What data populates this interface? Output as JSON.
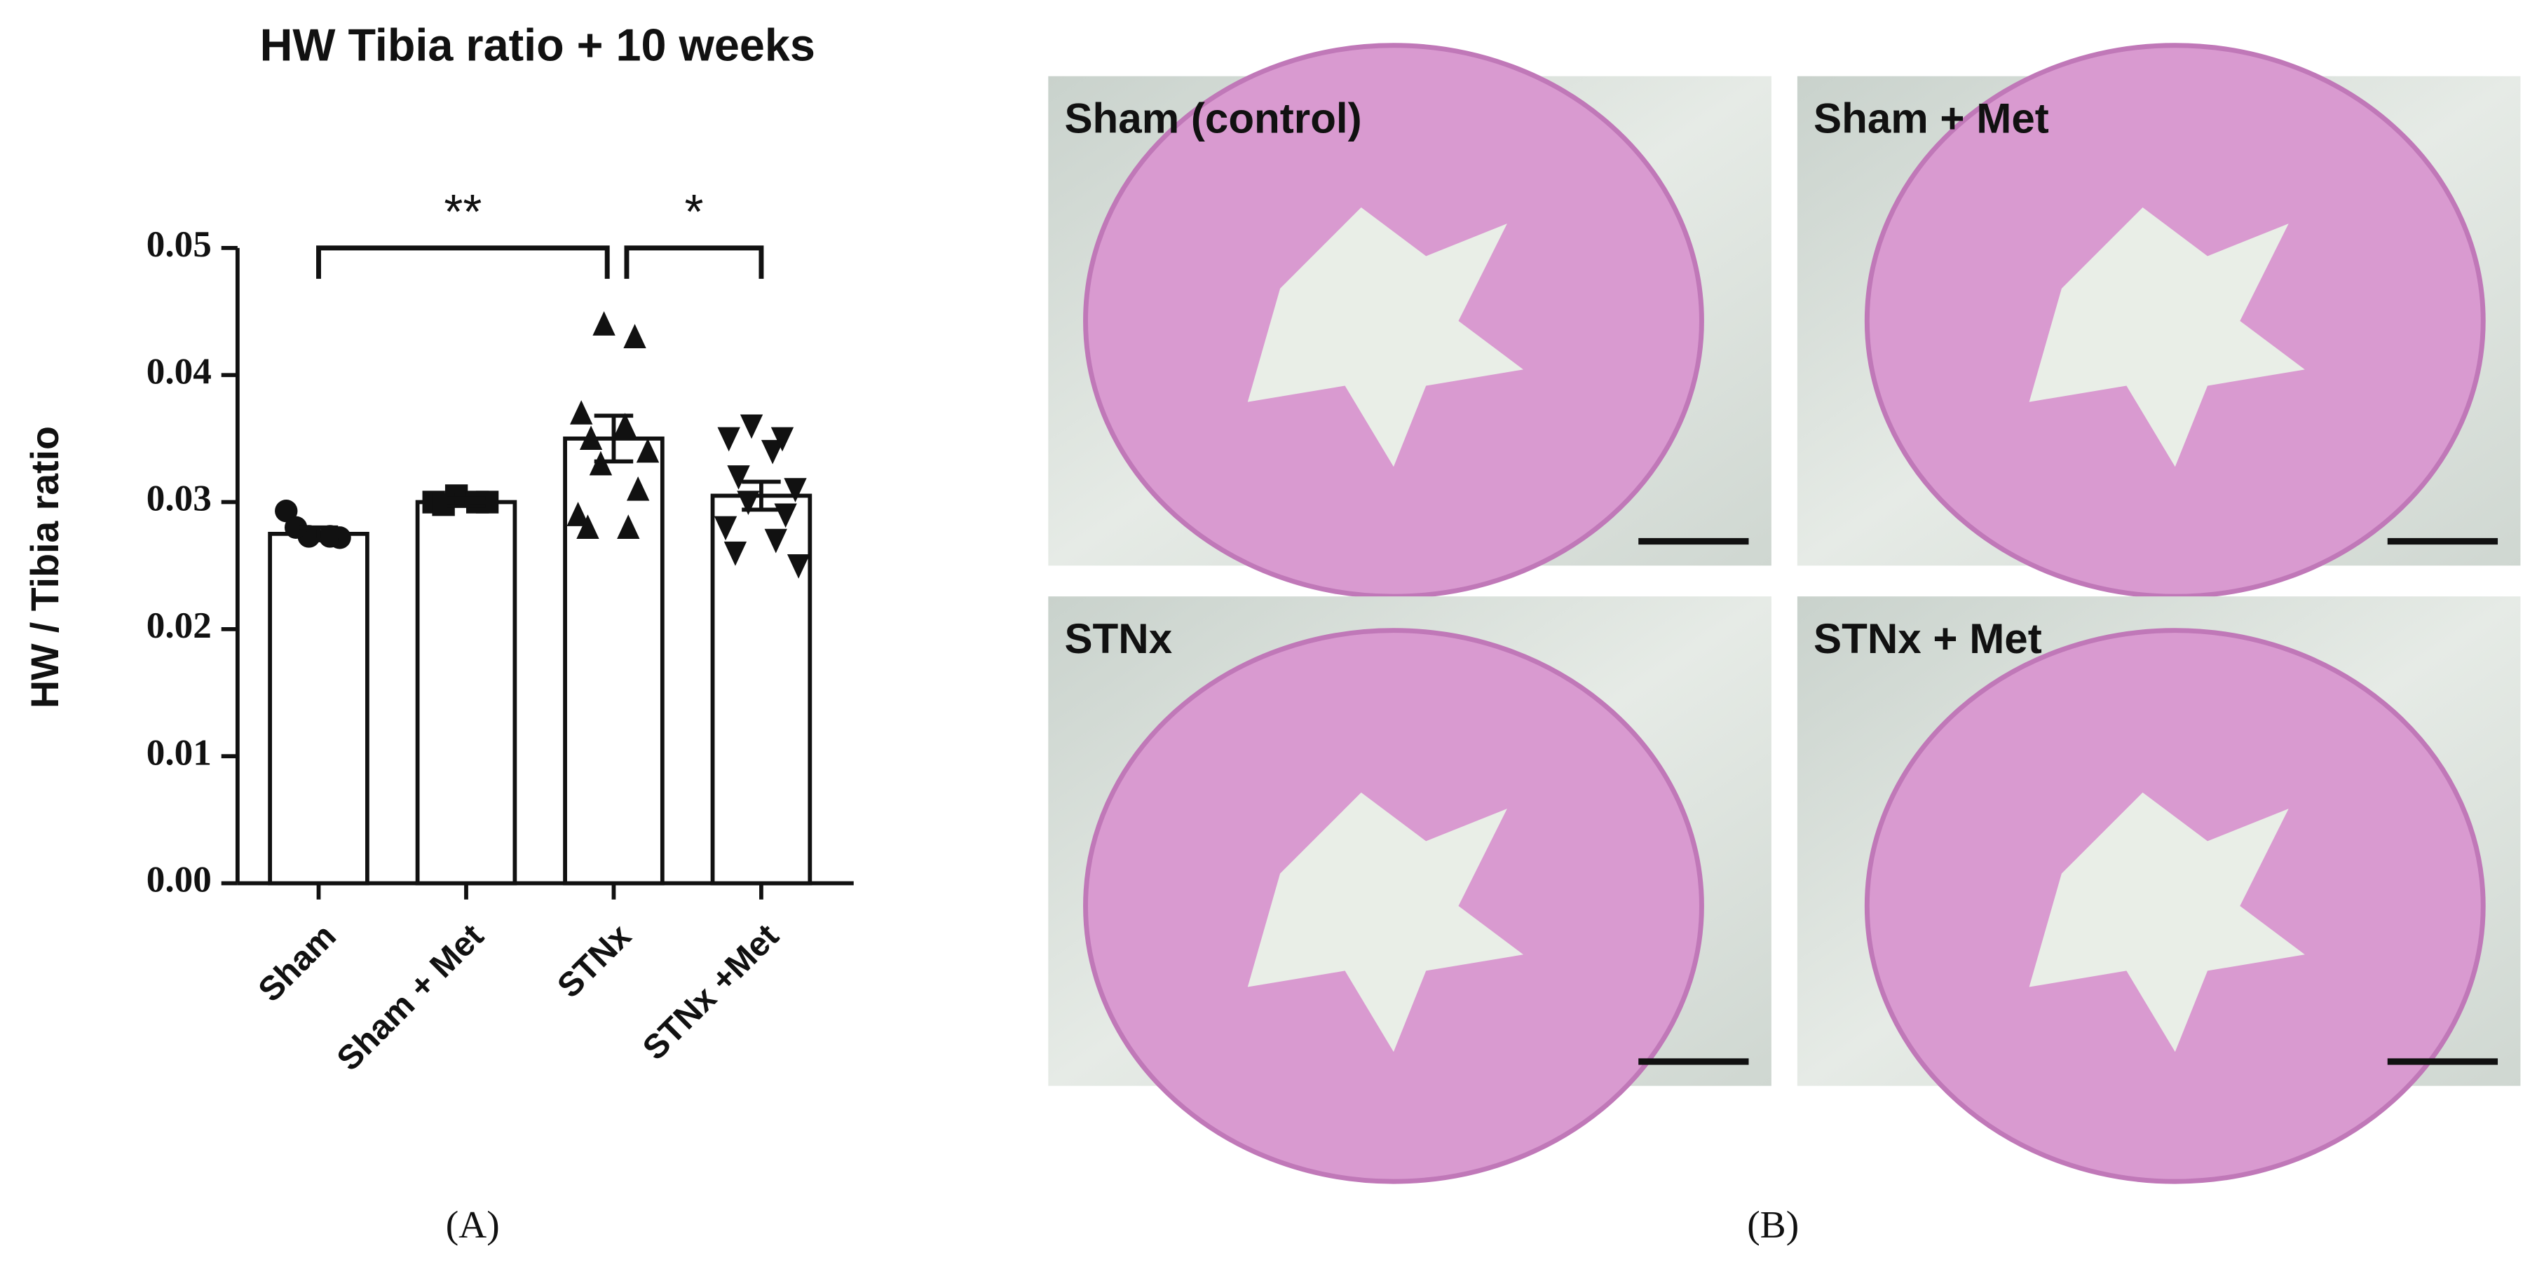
{
  "chart_data": {
    "type": "bar",
    "title": "HW Tibia ratio + 10 weeks",
    "ylabel": "HW / Tibia  ratio",
    "categories": [
      "Sham",
      "Sham + Met",
      "STNx",
      "STNx +Met"
    ],
    "values": [
      0.0275,
      0.03,
      0.035,
      0.0305
    ],
    "errors": [
      0.0005,
      0.0003,
      0.0018,
      0.0011
    ],
    "markers": [
      "circle",
      "square",
      "triangle-up",
      "triangle-down"
    ],
    "points": [
      [
        0.0273,
        0.0272,
        0.0293,
        0.0273,
        0.028
      ],
      [
        0.0305,
        0.03,
        0.03,
        0.03,
        0.0298
      ],
      [
        0.044,
        0.043,
        0.037,
        0.036,
        0.035,
        0.034,
        0.033,
        0.031,
        0.029,
        0.028,
        0.028
      ],
      [
        0.036,
        0.035,
        0.035,
        0.034,
        0.032,
        0.031,
        0.03,
        0.029,
        0.028,
        0.027,
        0.026,
        0.025
      ]
    ],
    "annotations": [
      {
        "text": "**",
        "from": 0,
        "to": 2
      },
      {
        "text": "*",
        "from": 2,
        "to": 3
      }
    ],
    "ylim": [
      0,
      0.05
    ],
    "yticks": [
      {
        "value": 0,
        "label": "0.00"
      },
      {
        "value": 0.01,
        "label": "0.01"
      },
      {
        "value": 0.02,
        "label": "0.02"
      },
      {
        "value": 0.03,
        "label": "0.03"
      },
      {
        "value": 0.04,
        "label": "0.04"
      },
      {
        "value": 0.05,
        "label": "0.05"
      }
    ],
    "color": "#ffffff"
  },
  "images": [
    {
      "label": "Sham (control)"
    },
    {
      "label": "Sham + Met"
    },
    {
      "label": "STNx"
    },
    {
      "label": "STNx + Met"
    }
  ],
  "panel_labels": [
    "(A)",
    "(B)"
  ]
}
